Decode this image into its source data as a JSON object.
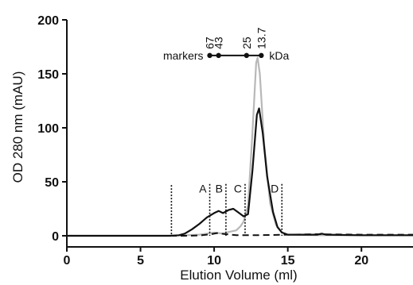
{
  "chart_data": {
    "type": "line",
    "title": "",
    "xlabel": "Elution Volume (ml)",
    "ylabel": "OD 280 nm (mAU)",
    "xlim": [
      0,
      23.5
    ],
    "ylim": [
      0,
      200
    ],
    "x_ticks": [
      "0",
      "5",
      "10",
      "15",
      "20"
    ],
    "y_ticks": [
      "0",
      "50",
      "100",
      "150",
      "200"
    ],
    "grid": false,
    "legend": "none",
    "series": [
      {
        "style": "solid",
        "color": "#111111",
        "points": [
          [
            0,
            0
          ],
          [
            6,
            0
          ],
          [
            7,
            0
          ],
          [
            7.6,
            0.5
          ],
          [
            8,
            2
          ],
          [
            8.5,
            6
          ],
          [
            9,
            11
          ],
          [
            9.5,
            17
          ],
          [
            10,
            21
          ],
          [
            10.3,
            23
          ],
          [
            10.6,
            21
          ],
          [
            11,
            24
          ],
          [
            11.3,
            25
          ],
          [
            11.7,
            21
          ],
          [
            12,
            18
          ],
          [
            12.3,
            20
          ],
          [
            12.6,
            60
          ],
          [
            12.9,
            112
          ],
          [
            13.05,
            118
          ],
          [
            13.3,
            95
          ],
          [
            13.6,
            55
          ],
          [
            14,
            22
          ],
          [
            14.3,
            8
          ],
          [
            14.6,
            3
          ],
          [
            15,
            1
          ],
          [
            17,
            1
          ],
          [
            17.3,
            2
          ],
          [
            17.6,
            1
          ],
          [
            20,
            0.5
          ],
          [
            23.5,
            0.5
          ]
        ]
      },
      {
        "style": "solid",
        "color": "#b8b8b8",
        "points": [
          [
            0,
            0
          ],
          [
            7,
            0
          ],
          [
            8,
            0.5
          ],
          [
            9,
            1
          ],
          [
            9.5,
            2
          ],
          [
            10,
            3
          ],
          [
            10.6,
            2
          ],
          [
            11,
            3.5
          ],
          [
            11.5,
            5
          ],
          [
            11.8,
            9
          ],
          [
            12,
            13
          ],
          [
            12.3,
            28
          ],
          [
            12.6,
            95
          ],
          [
            12.85,
            160
          ],
          [
            12.95,
            165
          ],
          [
            13.1,
            150
          ],
          [
            13.4,
            85
          ],
          [
            13.8,
            30
          ],
          [
            14.2,
            10
          ],
          [
            14.6,
            3
          ],
          [
            15,
            1
          ],
          [
            17,
            0.5
          ],
          [
            20,
            0.5
          ],
          [
            23.5,
            0.5
          ]
        ]
      },
      {
        "style": "dashed",
        "color": "#111111",
        "points": [
          [
            0,
            0
          ],
          [
            8,
            0
          ],
          [
            9,
            0.3
          ],
          [
            9.8,
            1.5
          ],
          [
            10.2,
            2.5
          ],
          [
            10.8,
            1.5
          ],
          [
            11.5,
            0.5
          ],
          [
            13,
            0.5
          ],
          [
            15,
            1
          ],
          [
            17,
            1.5
          ],
          [
            20,
            1
          ],
          [
            23.5,
            1
          ]
        ]
      }
    ],
    "fractions": [
      {
        "label": "A",
        "x": 9.7
      },
      {
        "label": "B",
        "x": 10.8
      },
      {
        "label": "C",
        "x": 12.1
      },
      {
        "label": "D",
        "x": 14.6
      }
    ],
    "fraction_start_x": 7.1,
    "markers": {
      "label": "markers",
      "unit": "kDa",
      "points": [
        {
          "label": "67",
          "x": 9.7
        },
        {
          "label": "43",
          "x": 10.3
        },
        {
          "label": "25",
          "x": 12.2
        },
        {
          "label": "13.7",
          "x": 13.2
        }
      ],
      "y": 167
    }
  }
}
